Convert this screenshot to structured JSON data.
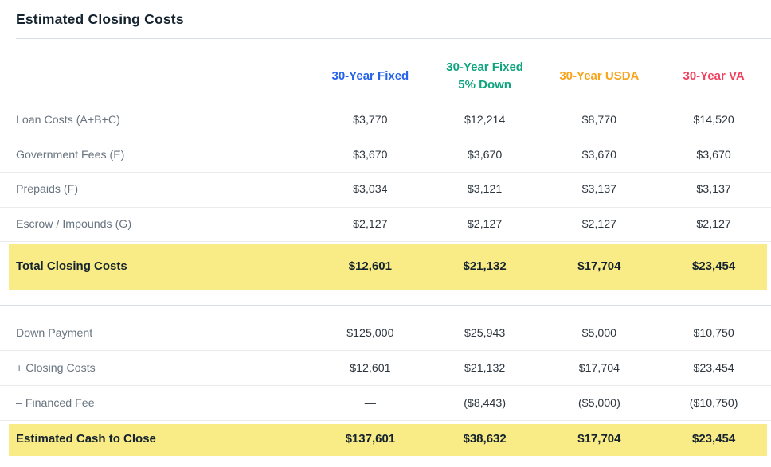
{
  "title": "Estimated Closing Costs",
  "columns": [
    {
      "label": "30-Year Fixed",
      "color": "#2563eb"
    },
    {
      "label": "30-Year Fixed 5% Down",
      "color": "#0fa47f"
    },
    {
      "label": "30-Year USDA",
      "color": "#f8a41c"
    },
    {
      "label": "30-Year VA",
      "color": "#f2415e"
    }
  ],
  "sections": [
    {
      "rows": [
        {
          "label": "Loan Costs (A+B+C)",
          "values": [
            "$3,770",
            "$12,214",
            "$8,770",
            "$14,520"
          ]
        },
        {
          "label": "Government Fees (E)",
          "values": [
            "$3,670",
            "$3,670",
            "$3,670",
            "$3,670"
          ]
        },
        {
          "label": "Prepaids (F)",
          "values": [
            "$3,034",
            "$3,121",
            "$3,137",
            "$3,137"
          ]
        },
        {
          "label": "Escrow / Impounds (G)",
          "values": [
            "$2,127",
            "$2,127",
            "$2,127",
            "$2,127"
          ]
        }
      ],
      "total": {
        "label": "Total Closing Costs",
        "values": [
          "$12,601",
          "$21,132",
          "$17,704",
          "$23,454"
        ]
      }
    },
    {
      "rows": [
        {
          "label": "Down Payment",
          "values": [
            "$125,000",
            "$25,943",
            "$5,000",
            "$10,750"
          ]
        },
        {
          "label": "+ Closing Costs",
          "values": [
            "$12,601",
            "$21,132",
            "$17,704",
            "$23,454"
          ]
        },
        {
          "label": "– Financed Fee",
          "values": [
            "—",
            "($8,443)",
            "($5,000)",
            "($10,750)"
          ]
        }
      ],
      "total": {
        "label": "Estimated Cash to Close",
        "values": [
          "$137,601",
          "$38,632",
          "$17,704",
          "$23,454"
        ]
      }
    }
  ],
  "colors": {
    "highlight": "#f9eb85",
    "title_text": "#14232f",
    "label_text": "#68747f",
    "value_text": "#2c353e",
    "row_border": "#e9ecee",
    "section_border": "#d9e0e4"
  }
}
